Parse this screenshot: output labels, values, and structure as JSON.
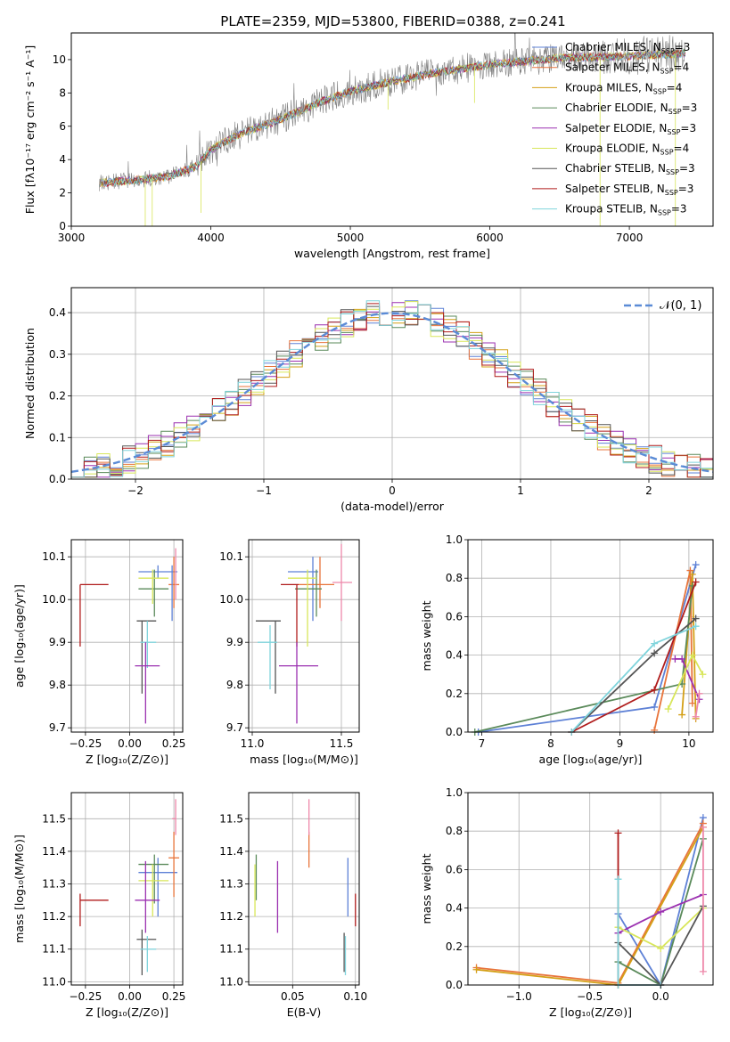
{
  "title": "PLATE=2359, MJD=53800, FIBERID=0388, z=0.241",
  "colors": {
    "chabrier_miles": "#5e81d6",
    "salpeter_miles": "#e8743b",
    "kroupa_miles": "#d4a017",
    "chabrier_elodie": "#5a8a5a",
    "salpeter_elodie": "#9b30b0",
    "kroupa_elodie": "#d8e65a",
    "chabrier_stelib": "#555555",
    "salpeter_stelib": "#b01c1c",
    "kroupa_stelib": "#7fd4dc",
    "pink": "#ee88aa",
    "normal": "#5b8bd6",
    "data": "#808080"
  },
  "chart_data": [
    {
      "id": "spectrum",
      "type": "line",
      "xlabel": "wavelength [Angstrom, rest frame]",
      "ylabel": "Flux [fλ10⁻¹⁷ erg cm⁻² s⁻¹ A⁻¹]",
      "xlim": [
        3000,
        7600
      ],
      "ylim": [
        0,
        11.6
      ],
      "xticks": [
        "3000",
        "4000",
        "5000",
        "6000",
        "7000"
      ],
      "yticks": [
        "0",
        "2",
        "4",
        "6",
        "8",
        "10"
      ],
      "legend_position": "top-right",
      "legend": [
        "Chabrier MILES, N_SSP=3",
        "Salpeter MILES, N_SSP=4",
        "Kroupa MILES, N_SSP=4",
        "Chabrier ELODIE, N_SSP=3",
        "Salpeter ELODIE, N_SSP=3",
        "Kroupa ELODIE, N_SSP=4",
        "Chabrier STELIB, N_SSP=3",
        "Salpeter STELIB, N_SSP=3",
        "Kroupa STELIB, N_SSP=3"
      ],
      "continuum": [
        [
          3200,
          2.6
        ],
        [
          3500,
          2.8
        ],
        [
          3700,
          3.0
        ],
        [
          3900,
          3.6
        ],
        [
          4000,
          4.6
        ],
        [
          4200,
          5.5
        ],
        [
          4500,
          6.4
        ],
        [
          4800,
          7.5
        ],
        [
          5000,
          8.1
        ],
        [
          5300,
          8.7
        ],
        [
          5600,
          9.2
        ],
        [
          6000,
          9.7
        ],
        [
          6500,
          10.1
        ],
        [
          7000,
          10.2
        ],
        [
          7400,
          10.4
        ]
      ],
      "grid": false
    },
    {
      "id": "residuals",
      "type": "histogram",
      "xlabel": "(data-model)/error",
      "ylabel": "Normed distribution",
      "xlim": [
        -2.5,
        2.5
      ],
      "ylim": [
        0,
        0.46
      ],
      "xticks": [
        "−2",
        "−1",
        "0",
        "1",
        "2"
      ],
      "yticks": [
        "0.0",
        "0.1",
        "0.2",
        "0.3",
        "0.4"
      ],
      "legend": "𝒩(0, 1)",
      "legend_position": "top-right",
      "bin_width": 0.1,
      "grid": true
    },
    {
      "id": "age_vs_Z",
      "type": "errorbar",
      "xlabel": "Z [log₁₀(Z/Z⊙)]",
      "ylabel": "age  [log₁₀(age/yr)]",
      "xlim": [
        -0.33,
        0.3
      ],
      "ylim": [
        9.69,
        10.14
      ],
      "xticks": [
        "−0.25",
        "0.00",
        "0.25"
      ],
      "xtick_values": [
        -0.25,
        0,
        0.25
      ],
      "yticks": [
        "9.7",
        "9.8",
        "9.9",
        "10.0",
        "10.1"
      ],
      "ytick_values": [
        9.7,
        9.8,
        9.9,
        10.0,
        10.1
      ],
      "points": [
        {
          "c": "chabrier_miles",
          "x": 0.16,
          "y": 10.065,
          "xlo": 0.05,
          "xhi": 0.27,
          "ylo": 10.05,
          "yhi": 10.08
        },
        {
          "c": "salpeter_miles",
          "x": 0.25,
          "y": 10.035,
          "xlo": 0.22,
          "xhi": 0.28,
          "ylo": 9.98,
          "yhi": 10.1
        },
        {
          "c": "chabrier_elodie",
          "x": 0.14,
          "y": 10.025,
          "xlo": 0.05,
          "xhi": 0.22,
          "ylo": 9.96,
          "yhi": 10.07
        },
        {
          "c": "kroupa_elodie",
          "x": 0.13,
          "y": 10.05,
          "xlo": 0.05,
          "xhi": 0.22,
          "ylo": 9.99,
          "yhi": 10.07
        },
        {
          "c": "salpeter_stelib",
          "x": -0.28,
          "y": 10.035,
          "xlo": -0.28,
          "xhi": -0.12,
          "ylo": 9.89,
          "yhi": 10.035
        },
        {
          "c": "chabrier_stelib",
          "x": 0.07,
          "y": 9.95,
          "xlo": 0.04,
          "xhi": 0.15,
          "ylo": 9.78,
          "yhi": 9.95
        },
        {
          "c": "kroupa_stelib",
          "x": 0.1,
          "y": 9.9,
          "xlo": 0.06,
          "xhi": 0.15,
          "ylo": 9.84,
          "yhi": 9.95
        },
        {
          "c": "salpeter_elodie",
          "x": 0.09,
          "y": 9.845,
          "xlo": 0.03,
          "xhi": 0.17,
          "ylo": 9.71,
          "yhi": 9.9
        },
        {
          "c": "chabrier_miles",
          "x": 0.24,
          "y": 10.05,
          "xlo": 0.24,
          "xhi": 0.24,
          "ylo": 9.95,
          "yhi": 10.08
        },
        {
          "c": "pink",
          "x": 0.26,
          "y": 10.04,
          "xlo": 0.26,
          "xhi": 0.26,
          "ylo": 10.0,
          "yhi": 10.12
        }
      ]
    },
    {
      "id": "age_vs_mass",
      "type": "errorbar",
      "xlabel": "mass [log₁₀(M/M⊙)]",
      "ylabel": "",
      "xlim": [
        10.98,
        11.6
      ],
      "ylim": [
        9.69,
        10.14
      ],
      "xticks": [
        "11.0",
        "11.5"
      ],
      "xtick_values": [
        11.0,
        11.5
      ],
      "yticks": [
        "9.7",
        "9.8",
        "9.9",
        "10.0",
        "10.1"
      ],
      "ytick_values": [
        9.7,
        9.8,
        9.9,
        10.0,
        10.1
      ],
      "points": [
        {
          "c": "chabrier_miles",
          "x": 11.34,
          "y": 10.065,
          "xlo": 11.2,
          "xhi": 11.37,
          "ylo": 9.95,
          "yhi": 10.1
        },
        {
          "c": "salpeter_miles",
          "x": 11.38,
          "y": 10.035,
          "xlo": 11.26,
          "xhi": 11.46,
          "ylo": 9.98,
          "yhi": 10.1
        },
        {
          "c": "chabrier_elodie",
          "x": 11.36,
          "y": 10.025,
          "xlo": 11.24,
          "xhi": 11.39,
          "ylo": 9.96,
          "yhi": 10.07
        },
        {
          "c": "kroupa_elodie",
          "x": 11.31,
          "y": 10.05,
          "xlo": 11.2,
          "xhi": 11.36,
          "ylo": 9.89,
          "yhi": 10.07
        },
        {
          "c": "salpeter_stelib",
          "x": 11.25,
          "y": 10.035,
          "xlo": 11.16,
          "xhi": 11.26,
          "ylo": 9.89,
          "yhi": 10.035
        },
        {
          "c": "chabrier_stelib",
          "x": 11.13,
          "y": 9.95,
          "xlo": 11.02,
          "xhi": 11.16,
          "ylo": 9.78,
          "yhi": 9.95
        },
        {
          "c": "kroupa_stelib",
          "x": 11.1,
          "y": 9.9,
          "xlo": 11.03,
          "xhi": 11.14,
          "ylo": 9.79,
          "yhi": 9.94
        },
        {
          "c": "salpeter_elodie",
          "x": 11.25,
          "y": 9.845,
          "xlo": 11.15,
          "xhi": 11.37,
          "ylo": 9.71,
          "yhi": 9.9
        },
        {
          "c": "pink",
          "x": 11.5,
          "y": 10.04,
          "xlo": 11.45,
          "xhi": 11.56,
          "ylo": 9.95,
          "yhi": 10.13
        }
      ]
    },
    {
      "id": "weight_vs_age",
      "type": "line",
      "xlabel": "age  [log₁₀(age/yr)]",
      "ylabel": "mass weight",
      "xlim": [
        6.8,
        10.35
      ],
      "ylim": [
        0,
        1
      ],
      "xticks": [
        "7",
        "8",
        "9",
        "10"
      ],
      "xtick_values": [
        7,
        8,
        9,
        10
      ],
      "yticks": [
        "0.0",
        "0.2",
        "0.4",
        "0.6",
        "0.8",
        "1.0"
      ],
      "ytick_values": [
        0,
        0.2,
        0.4,
        0.6,
        0.8,
        1.0
      ],
      "series": [
        {
          "c": "chabrier_miles",
          "points": [
            [
              6.95,
              0.0
            ],
            [
              9.5,
              0.13
            ],
            [
              10.1,
              0.87
            ]
          ]
        },
        {
          "c": "salpeter_miles",
          "points": [
            [
              9.5,
              0.01
            ],
            [
              10.02,
              0.84
            ],
            [
              10.05,
              0.15
            ]
          ]
        },
        {
          "c": "kroupa_miles",
          "points": [
            [
              9.9,
              0.09
            ],
            [
              10.05,
              0.82
            ],
            [
              10.1,
              0.07
            ]
          ]
        },
        {
          "c": "chabrier_elodie",
          "points": [
            [
              6.9,
              0.0
            ],
            [
              9.9,
              0.25
            ],
            [
              10.05,
              0.76
            ]
          ]
        },
        {
          "c": "salpeter_elodie",
          "points": [
            [
              9.8,
              0.38
            ],
            [
              9.9,
              0.38
            ],
            [
              10.15,
              0.17
            ]
          ]
        },
        {
          "c": "kroupa_elodie",
          "points": [
            [
              9.7,
              0.12
            ],
            [
              10.05,
              0.4
            ],
            [
              10.2,
              0.3
            ]
          ]
        },
        {
          "c": "chabrier_stelib",
          "points": [
            [
              8.3,
              0.0
            ],
            [
              9.5,
              0.41
            ],
            [
              10.1,
              0.59
            ]
          ]
        },
        {
          "c": "salpeter_stelib",
          "points": [
            [
              8.3,
              0.0
            ],
            [
              9.5,
              0.22
            ],
            [
              10.1,
              0.78
            ]
          ]
        },
        {
          "c": "kroupa_stelib",
          "points": [
            [
              8.3,
              0.0
            ],
            [
              9.5,
              0.46
            ],
            [
              10.1,
              0.55
            ]
          ]
        },
        {
          "c": "pink",
          "points": [
            [
              10.1,
              0.08
            ],
            [
              10.15,
              0.2
            ]
          ]
        }
      ]
    },
    {
      "id": "mass_vs_Z",
      "type": "errorbar",
      "xlabel": "Z [log₁₀(Z/Z⊙)]",
      "ylabel": "mass [log₁₀(M/M⊙)]",
      "xlim": [
        -0.33,
        0.3
      ],
      "ylim": [
        10.99,
        11.58
      ],
      "xticks": [
        "−0.25",
        "0.00",
        "0.25"
      ],
      "xtick_values": [
        -0.25,
        0,
        0.25
      ],
      "yticks": [
        "11.0",
        "11.1",
        "11.2",
        "11.3",
        "11.4",
        "11.5"
      ],
      "ytick_values": [
        11.0,
        11.1,
        11.2,
        11.3,
        11.4,
        11.5
      ],
      "points": [
        {
          "c": "chabrier_miles",
          "x": 0.16,
          "y": 11.335,
          "xlo": 0.05,
          "xhi": 0.27,
          "ylo": 11.2,
          "yhi": 11.38
        },
        {
          "c": "salpeter_miles",
          "x": 0.25,
          "y": 11.38,
          "xlo": 0.22,
          "xhi": 0.28,
          "ylo": 11.26,
          "yhi": 11.46
        },
        {
          "c": "chabrier_elodie",
          "x": 0.14,
          "y": 11.36,
          "xlo": 0.05,
          "xhi": 0.22,
          "ylo": 11.24,
          "yhi": 11.39
        },
        {
          "c": "kroupa_elodie",
          "x": 0.13,
          "y": 11.31,
          "xlo": 0.05,
          "xhi": 0.22,
          "ylo": 11.2,
          "yhi": 11.36
        },
        {
          "c": "salpeter_stelib",
          "x": -0.28,
          "y": 11.25,
          "xlo": -0.28,
          "xhi": -0.12,
          "ylo": 11.17,
          "yhi": 11.27
        },
        {
          "c": "chabrier_stelib",
          "x": 0.07,
          "y": 11.13,
          "xlo": 0.04,
          "xhi": 0.15,
          "ylo": 11.02,
          "yhi": 11.16
        },
        {
          "c": "kroupa_stelib",
          "x": 0.1,
          "y": 11.1,
          "xlo": 0.06,
          "xhi": 0.15,
          "ylo": 11.03,
          "yhi": 11.14
        },
        {
          "c": "salpeter_elodie",
          "x": 0.09,
          "y": 11.25,
          "xlo": 0.03,
          "xhi": 0.17,
          "ylo": 11.15,
          "yhi": 11.37
        },
        {
          "c": "pink",
          "x": 0.26,
          "y": 11.5,
          "xlo": 0.24,
          "xhi": 0.26,
          "ylo": 11.45,
          "yhi": 11.56
        }
      ]
    },
    {
      "id": "mass_vs_ebv",
      "type": "errorbar",
      "xlabel": "E(B-V)",
      "ylabel": "",
      "xlim": [
        0.015,
        0.103
      ],
      "ylim": [
        10.99,
        11.58
      ],
      "xticks": [
        "0.05",
        "0.10"
      ],
      "xtick_values": [
        0.05,
        0.1
      ],
      "yticks": [
        "11.0",
        "11.1",
        "11.2",
        "11.3",
        "11.4",
        "11.5"
      ],
      "ytick_values": [
        11.0,
        11.1,
        11.2,
        11.3,
        11.4,
        11.5
      ],
      "points": [
        {
          "c": "chabrier_miles",
          "x": 0.094,
          "y": 11.29,
          "xlo": 0.094,
          "xhi": 0.094,
          "ylo": 11.2,
          "yhi": 11.38
        },
        {
          "c": "salpeter_miles",
          "x": 0.063,
          "y": 11.4,
          "xlo": 0.063,
          "xhi": 0.063,
          "ylo": 11.35,
          "yhi": 11.46
        },
        {
          "c": "chabrier_elodie",
          "x": 0.021,
          "y": 11.32,
          "xlo": 0.021,
          "xhi": 0.021,
          "ylo": 11.25,
          "yhi": 11.39
        },
        {
          "c": "kroupa_elodie",
          "x": 0.02,
          "y": 11.28,
          "xlo": 0.02,
          "xhi": 0.02,
          "ylo": 11.2,
          "yhi": 11.36
        },
        {
          "c": "salpeter_stelib",
          "x": 0.1,
          "y": 11.22,
          "xlo": 0.1,
          "xhi": 0.1,
          "ylo": 11.17,
          "yhi": 11.27
        },
        {
          "c": "chabrier_stelib",
          "x": 0.091,
          "y": 11.09,
          "xlo": 0.091,
          "xhi": 0.091,
          "ylo": 11.03,
          "yhi": 11.15
        },
        {
          "c": "kroupa_stelib",
          "x": 0.092,
          "y": 11.08,
          "xlo": 0.092,
          "xhi": 0.092,
          "ylo": 11.02,
          "yhi": 11.14
        },
        {
          "c": "salpeter_elodie",
          "x": 0.038,
          "y": 11.25,
          "xlo": 0.038,
          "xhi": 0.038,
          "ylo": 11.15,
          "yhi": 11.37
        },
        {
          "c": "pink",
          "x": 0.063,
          "y": 11.5,
          "xlo": 0.063,
          "xhi": 0.063,
          "ylo": 11.45,
          "yhi": 11.56
        }
      ]
    },
    {
      "id": "weight_vs_Z",
      "type": "line",
      "xlabel": "Z [log₁₀(Z/Z⊙)]",
      "ylabel": "mass weight",
      "xlim": [
        -1.36,
        0.37
      ],
      "ylim": [
        0,
        1
      ],
      "xticks": [
        "−1.0",
        "−0.5",
        "0.0"
      ],
      "xtick_values": [
        -1.0,
        -0.5,
        0.0
      ],
      "yticks": [
        "0.0",
        "0.2",
        "0.4",
        "0.6",
        "0.8",
        "1.0"
      ],
      "ytick_values": [
        0,
        0.2,
        0.4,
        0.6,
        0.8,
        1.0
      ],
      "series": [
        {
          "c": "chabrier_miles",
          "points": [
            [
              -0.3,
              0.37
            ],
            [
              0.0,
              0.0
            ],
            [
              0.3,
              0.87
            ]
          ]
        },
        {
          "c": "salpeter_miles",
          "points": [
            [
              -1.3,
              0.09
            ],
            [
              -0.3,
              0.01
            ],
            [
              0.3,
              0.84
            ]
          ]
        },
        {
          "c": "kroupa_miles",
          "points": [
            [
              -1.3,
              0.08
            ],
            [
              -0.3,
              0.0
            ],
            [
              0.3,
              0.82
            ]
          ]
        },
        {
          "c": "chabrier_elodie",
          "points": [
            [
              -0.3,
              0.12
            ],
            [
              0.0,
              0.0
            ],
            [
              0.3,
              0.76
            ]
          ]
        },
        {
          "c": "salpeter_elodie",
          "points": [
            [
              -0.3,
              0.27
            ],
            [
              0.0,
              0.38
            ],
            [
              0.3,
              0.47
            ]
          ]
        },
        {
          "c": "kroupa_elodie",
          "points": [
            [
              -0.3,
              0.3
            ],
            [
              0.0,
              0.19
            ],
            [
              0.3,
              0.4
            ]
          ]
        },
        {
          "c": "chabrier_stelib",
          "points": [
            [
              -0.3,
              0.22
            ],
            [
              0.0,
              0.0
            ],
            [
              0.3,
              0.41
            ]
          ]
        },
        {
          "c": "salpeter_stelib",
          "points": [
            [
              -0.3,
              0.79
            ],
            [
              -0.3,
              0.0
            ],
            [
              0.0,
              0.0
            ]
          ]
        },
        {
          "c": "kroupa_stelib",
          "points": [
            [
              -0.3,
              0.55
            ],
            [
              -0.3,
              0.0
            ],
            [
              0.0,
              0.0
            ]
          ]
        },
        {
          "c": "pink",
          "points": [
            [
              0.3,
              0.07
            ],
            [
              0.3,
              0.82
            ]
          ]
        }
      ]
    }
  ]
}
